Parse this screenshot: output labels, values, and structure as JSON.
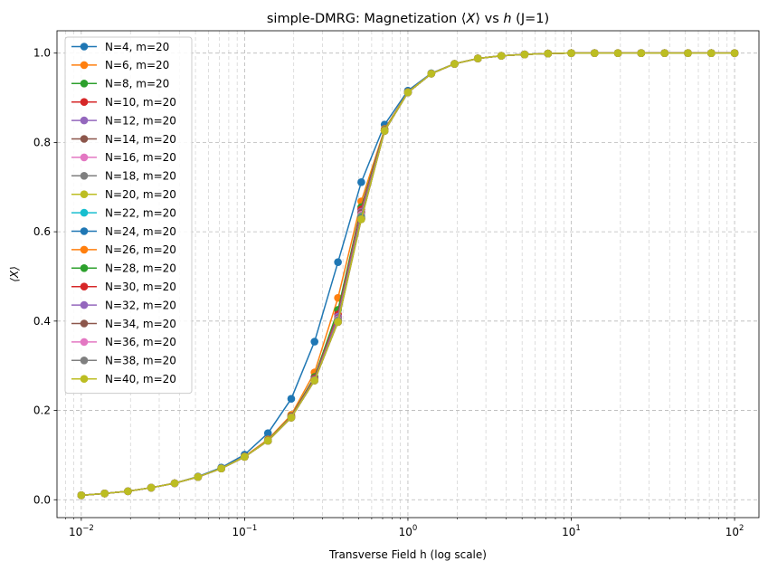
{
  "chart_data": {
    "type": "line",
    "title": "simple-DMRG: Magnetization ⟨X⟩ vs h (J=1)",
    "title_parts": {
      "prefix": "simple-DMRG: Magnetization ⟨",
      "x_symbol": "X",
      "middle": "⟩ vs ",
      "h_symbol": "h",
      "suffix": " (J=1)"
    },
    "xlabel": "Transverse Field h (log scale)",
    "ylabel": "⟨X⟩",
    "xscale": "log",
    "xlim": [
      0.0071,
      141
    ],
    "ylim": [
      -0.04,
      1.05
    ],
    "grid": true,
    "legend_location": "upper left",
    "x_ticks": [
      {
        "value": 0.01,
        "base": "10",
        "exp": "−2"
      },
      {
        "value": 0.1,
        "base": "10",
        "exp": "−1"
      },
      {
        "value": 1,
        "base": "10",
        "exp": "0"
      },
      {
        "value": 10,
        "base": "10",
        "exp": "1"
      },
      {
        "value": 100,
        "base": "10",
        "exp": "2"
      }
    ],
    "y_ticks": [
      "0.0",
      "0.2",
      "0.4",
      "0.6",
      "0.8",
      "1.0"
    ],
    "x": [
      0.01,
      0.0139,
      0.0193,
      0.0268,
      0.0373,
      0.0518,
      0.072,
      0.1,
      0.139,
      0.193,
      0.268,
      0.373,
      0.518,
      0.72,
      1.0,
      1.39,
      1.93,
      2.68,
      3.73,
      5.18,
      7.2,
      10.0,
      13.9,
      19.3,
      26.8,
      37.3,
      51.8,
      72.0,
      100.0
    ],
    "series": [
      {
        "name": "N=4, m=20",
        "color": "#1f77b4",
        "values": [
          0.01,
          0.014,
          0.019,
          0.027,
          0.037,
          0.052,
          0.072,
          0.101,
          0.149,
          0.226,
          0.354,
          0.532,
          0.711,
          0.84,
          0.916,
          0.955,
          0.976,
          0.988,
          0.994,
          0.997,
          0.999,
          1.0,
          1.0,
          1.0,
          1.0,
          1.0,
          1.0,
          1.0,
          1.0
        ]
      },
      {
        "name": "N=6, m=20",
        "color": "#ff7f0e",
        "values": [
          0.01,
          0.014,
          0.019,
          0.027,
          0.037,
          0.051,
          0.07,
          0.097,
          0.135,
          0.19,
          0.285,
          0.452,
          0.668,
          0.83,
          0.913,
          0.954,
          0.976,
          0.988,
          0.994,
          0.997,
          0.999,
          1.0,
          1.0,
          1.0,
          1.0,
          1.0,
          1.0,
          1.0,
          1.0
        ]
      },
      {
        "name": "N=8, m=20",
        "color": "#2ca02c",
        "values": [
          0.01,
          0.014,
          0.019,
          0.027,
          0.037,
          0.051,
          0.07,
          0.096,
          0.133,
          0.187,
          0.275,
          0.425,
          0.655,
          0.828,
          0.912,
          0.954,
          0.976,
          0.988,
          0.994,
          0.997,
          0.999,
          1.0,
          1.0,
          1.0,
          1.0,
          1.0,
          1.0,
          1.0,
          1.0
        ]
      },
      {
        "name": "N=10, m=20",
        "color": "#d62728",
        "values": [
          0.01,
          0.014,
          0.019,
          0.027,
          0.037,
          0.051,
          0.07,
          0.096,
          0.132,
          0.186,
          0.272,
          0.415,
          0.65,
          0.827,
          0.912,
          0.954,
          0.976,
          0.988,
          0.994,
          0.997,
          0.999,
          1.0,
          1.0,
          1.0,
          1.0,
          1.0,
          1.0,
          1.0,
          1.0
        ]
      },
      {
        "name": "N=12, m=20",
        "color": "#9467bd",
        "values": [
          0.01,
          0.014,
          0.019,
          0.027,
          0.037,
          0.051,
          0.07,
          0.096,
          0.132,
          0.185,
          0.27,
          0.41,
          0.645,
          0.827,
          0.912,
          0.954,
          0.976,
          0.988,
          0.994,
          0.997,
          0.999,
          1.0,
          1.0,
          1.0,
          1.0,
          1.0,
          1.0,
          1.0,
          1.0
        ]
      },
      {
        "name": "N=14, m=20",
        "color": "#8c564b",
        "values": [
          0.01,
          0.014,
          0.019,
          0.027,
          0.037,
          0.051,
          0.07,
          0.096,
          0.132,
          0.185,
          0.269,
          0.406,
          0.642,
          0.826,
          0.912,
          0.954,
          0.976,
          0.988,
          0.994,
          0.997,
          0.999,
          1.0,
          1.0,
          1.0,
          1.0,
          1.0,
          1.0,
          1.0,
          1.0
        ]
      },
      {
        "name": "N=16, m=20",
        "color": "#e377c2",
        "values": [
          0.01,
          0.014,
          0.019,
          0.027,
          0.037,
          0.051,
          0.07,
          0.096,
          0.132,
          0.185,
          0.268,
          0.404,
          0.638,
          0.826,
          0.912,
          0.954,
          0.976,
          0.988,
          0.994,
          0.997,
          0.999,
          1.0,
          1.0,
          1.0,
          1.0,
          1.0,
          1.0,
          1.0,
          1.0
        ]
      },
      {
        "name": "N=18, m=20",
        "color": "#7f7f7f",
        "values": [
          0.01,
          0.014,
          0.019,
          0.027,
          0.037,
          0.051,
          0.07,
          0.096,
          0.132,
          0.184,
          0.268,
          0.402,
          0.635,
          0.826,
          0.912,
          0.954,
          0.976,
          0.988,
          0.994,
          0.997,
          0.999,
          1.0,
          1.0,
          1.0,
          1.0,
          1.0,
          1.0,
          1.0,
          1.0
        ]
      },
      {
        "name": "N=20, m=20",
        "color": "#bcbd22",
        "values": [
          0.01,
          0.014,
          0.019,
          0.027,
          0.037,
          0.051,
          0.07,
          0.096,
          0.132,
          0.184,
          0.267,
          0.4,
          0.633,
          0.826,
          0.912,
          0.954,
          0.976,
          0.988,
          0.994,
          0.997,
          0.999,
          1.0,
          1.0,
          1.0,
          1.0,
          1.0,
          1.0,
          1.0,
          1.0
        ]
      },
      {
        "name": "N=22, m=20",
        "color": "#17becf",
        "values": [
          0.01,
          0.014,
          0.019,
          0.027,
          0.037,
          0.051,
          0.07,
          0.096,
          0.132,
          0.184,
          0.267,
          0.4,
          0.632,
          0.826,
          0.912,
          0.954,
          0.976,
          0.988,
          0.994,
          0.997,
          0.999,
          1.0,
          1.0,
          1.0,
          1.0,
          1.0,
          1.0,
          1.0,
          1.0
        ]
      },
      {
        "name": "N=24, m=20",
        "color": "#1f77b4",
        "values": [
          0.01,
          0.014,
          0.019,
          0.027,
          0.037,
          0.051,
          0.07,
          0.096,
          0.132,
          0.184,
          0.267,
          0.399,
          0.631,
          0.826,
          0.912,
          0.954,
          0.976,
          0.988,
          0.994,
          0.997,
          0.999,
          1.0,
          1.0,
          1.0,
          1.0,
          1.0,
          1.0,
          1.0,
          1.0
        ]
      },
      {
        "name": "N=26, m=20",
        "color": "#ff7f0e",
        "values": [
          0.01,
          0.014,
          0.019,
          0.027,
          0.037,
          0.051,
          0.07,
          0.096,
          0.132,
          0.184,
          0.267,
          0.399,
          0.63,
          0.826,
          0.912,
          0.954,
          0.976,
          0.988,
          0.994,
          0.997,
          0.999,
          1.0,
          1.0,
          1.0,
          1.0,
          1.0,
          1.0,
          1.0,
          1.0
        ]
      },
      {
        "name": "N=28, m=20",
        "color": "#2ca02c",
        "values": [
          0.01,
          0.014,
          0.019,
          0.027,
          0.037,
          0.051,
          0.07,
          0.096,
          0.132,
          0.184,
          0.267,
          0.398,
          0.63,
          0.826,
          0.912,
          0.954,
          0.976,
          0.988,
          0.994,
          0.997,
          0.999,
          1.0,
          1.0,
          1.0,
          1.0,
          1.0,
          1.0,
          1.0,
          1.0
        ]
      },
      {
        "name": "N=30, m=20",
        "color": "#d62728",
        "values": [
          0.01,
          0.014,
          0.019,
          0.027,
          0.037,
          0.051,
          0.07,
          0.096,
          0.132,
          0.184,
          0.267,
          0.398,
          0.629,
          0.826,
          0.912,
          0.954,
          0.976,
          0.988,
          0.994,
          0.997,
          0.999,
          1.0,
          1.0,
          1.0,
          1.0,
          1.0,
          1.0,
          1.0,
          1.0
        ]
      },
      {
        "name": "N=32, m=20",
        "color": "#9467bd",
        "values": [
          0.01,
          0.014,
          0.019,
          0.027,
          0.037,
          0.051,
          0.07,
          0.096,
          0.132,
          0.184,
          0.267,
          0.398,
          0.629,
          0.826,
          0.912,
          0.954,
          0.976,
          0.988,
          0.994,
          0.997,
          0.999,
          1.0,
          1.0,
          1.0,
          1.0,
          1.0,
          1.0,
          1.0,
          1.0
        ]
      },
      {
        "name": "N=34, m=20",
        "color": "#8c564b",
        "values": [
          0.01,
          0.014,
          0.019,
          0.027,
          0.037,
          0.051,
          0.07,
          0.096,
          0.132,
          0.184,
          0.267,
          0.398,
          0.628,
          0.826,
          0.912,
          0.954,
          0.976,
          0.988,
          0.994,
          0.997,
          0.999,
          1.0,
          1.0,
          1.0,
          1.0,
          1.0,
          1.0,
          1.0,
          1.0
        ]
      },
      {
        "name": "N=36, m=20",
        "color": "#e377c2",
        "values": [
          0.01,
          0.014,
          0.019,
          0.027,
          0.037,
          0.051,
          0.07,
          0.096,
          0.132,
          0.184,
          0.267,
          0.398,
          0.628,
          0.826,
          0.912,
          0.954,
          0.976,
          0.988,
          0.994,
          0.997,
          0.999,
          1.0,
          1.0,
          1.0,
          1.0,
          1.0,
          1.0,
          1.0,
          1.0
        ]
      },
      {
        "name": "N=38, m=20",
        "color": "#7f7f7f",
        "values": [
          0.01,
          0.014,
          0.019,
          0.027,
          0.037,
          0.051,
          0.07,
          0.096,
          0.132,
          0.184,
          0.267,
          0.398,
          0.628,
          0.826,
          0.912,
          0.954,
          0.976,
          0.988,
          0.994,
          0.997,
          0.999,
          1.0,
          1.0,
          1.0,
          1.0,
          1.0,
          1.0,
          1.0,
          1.0
        ]
      },
      {
        "name": "N=40, m=20",
        "color": "#bcbd22",
        "values": [
          0.01,
          0.014,
          0.019,
          0.027,
          0.037,
          0.051,
          0.07,
          0.096,
          0.132,
          0.184,
          0.267,
          0.398,
          0.628,
          0.826,
          0.912,
          0.954,
          0.976,
          0.988,
          0.994,
          0.997,
          0.999,
          1.0,
          1.0,
          1.0,
          1.0,
          1.0,
          1.0,
          1.0,
          1.0
        ]
      }
    ]
  }
}
